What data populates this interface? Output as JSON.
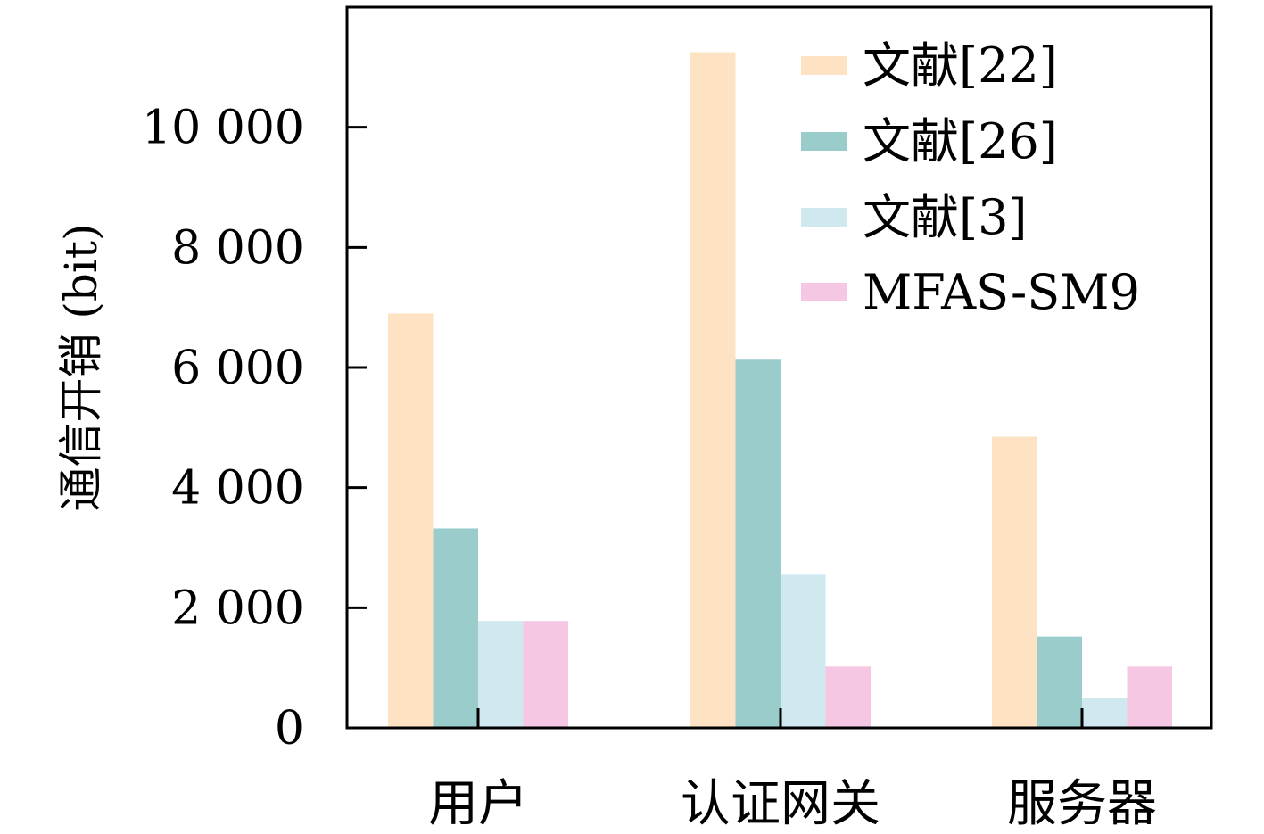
{
  "chart_data": {
    "type": "bar",
    "categories": [
      "用户",
      "认证网关",
      "服务器"
    ],
    "series": [
      {
        "name": "文献[22]",
        "values": [
          6900,
          11250,
          4850
        ],
        "color": "#fde3c4"
      },
      {
        "name": "文献[26]",
        "values": [
          3320,
          6130,
          1520
        ],
        "color": "#99cccb"
      },
      {
        "name": "文献[3]",
        "values": [
          1780,
          2550,
          500
        ],
        "color": "#d0e9f0"
      },
      {
        "name": "MFAS-SM9",
        "values": [
          1780,
          1020,
          1020
        ],
        "color": "#f6c7e2"
      }
    ],
    "ylabel": "通信开销 (bit)",
    "ylim": [
      0,
      12000
    ],
    "yticks": [
      0,
      2000,
      4000,
      6000,
      8000,
      10000
    ],
    "ytick_labels": [
      "0",
      "2 000",
      "4 000",
      "6 000",
      "8 000",
      "10 000"
    ],
    "grid": false,
    "legend": "top-right"
  }
}
